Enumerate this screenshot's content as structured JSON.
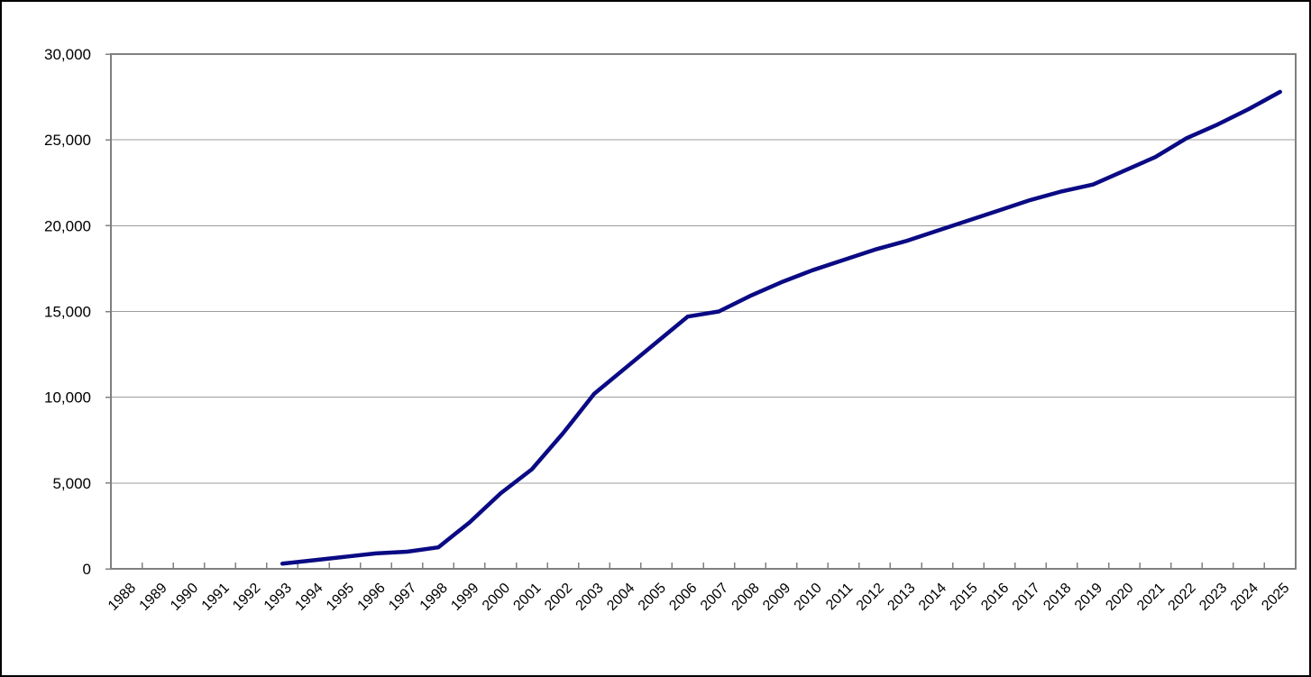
{
  "chart": {
    "background_color": "#ffffff",
    "outer_border_color": "#000000",
    "plot_border_color": "#808080",
    "gridline_color": "#9c9c9c",
    "tick_color": "#808080",
    "series_line_color": "#0a0a84",
    "label_color": "#000000"
  },
  "chart_data": {
    "type": "line",
    "title": "",
    "xlabel": "",
    "ylabel": "",
    "legend": "none",
    "grid": "horizontal",
    "ylim": [
      0,
      30000
    ],
    "ytick_interval": 5000,
    "ytick_labels": [
      "0",
      "5,000",
      "10,000",
      "15,000",
      "20,000",
      "25,000",
      "30,000"
    ],
    "x": [
      1988,
      1989,
      1990,
      1991,
      1992,
      1993,
      1994,
      1995,
      1996,
      1997,
      1998,
      1999,
      2000,
      2001,
      2002,
      2003,
      2004,
      2005,
      2006,
      2007,
      2008,
      2009,
      2010,
      2011,
      2012,
      2013,
      2014,
      2015,
      2016,
      2017,
      2018,
      2019,
      2020,
      2021,
      2022,
      2023,
      2024,
      2025
    ],
    "series": [
      {
        "name": "series-1",
        "values": [
          null,
          null,
          null,
          null,
          null,
          300,
          500,
          700,
          900,
          1000,
          1250,
          2700,
          4400,
          5800,
          7900,
          10200,
          11700,
          13200,
          14700,
          15000,
          15900,
          16700,
          17400,
          18000,
          18600,
          19100,
          19700,
          20300,
          20900,
          21500,
          22000,
          22400,
          23200,
          24000,
          25100,
          25900,
          26800,
          27800
        ]
      }
    ]
  }
}
